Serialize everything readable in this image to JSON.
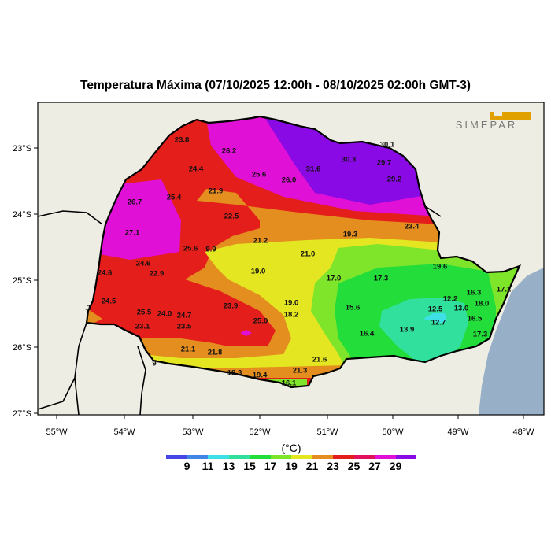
{
  "title": "Temperatura Máxima (07/10/2025 12:00h - 08/10/2025 02:00h GMT-3)",
  "logo_text": "SIMEPAR",
  "colors": {
    "land_outside": "#eeede4",
    "ocean": "#97b0c8",
    "logo": "#e0a000",
    "bins": [
      "#4646e6",
      "#3f86e6",
      "#3fdfe6",
      "#32e09e",
      "#22dd3a",
      "#7ee52a",
      "#e4e622",
      "#e48e20",
      "#e41e1a",
      "#e0125e",
      "#e010d6",
      "#8a0ae6"
    ]
  },
  "axes": {
    "lon_ticks": [
      "55°W",
      "54°W",
      "53°W",
      "52°W",
      "51°W",
      "50°W",
      "49°W",
      "48°W"
    ],
    "lat_ticks": [
      "23°S",
      "24°S",
      "25°S",
      "26°S",
      "27°S"
    ]
  },
  "legend": {
    "unit": "(°C)",
    "ticks": [
      "9",
      "11",
      "13",
      "15",
      "17",
      "19",
      "21",
      "23",
      "25",
      "27",
      "29"
    ]
  },
  "station_values": [
    "23.8",
    "26.2",
    "24.4",
    "25.6",
    "26.0",
    "31.6",
    "30.3",
    "29.7",
    "30.1",
    "29.2",
    "26.7",
    "25.4",
    "21.9",
    "22.5",
    "27.1",
    "23.4",
    "19.3",
    "21.2",
    "25.6",
    "9.9",
    "21.0",
    "24.6",
    "22.9",
    "24.6",
    "19.0",
    "19.6",
    "17.0",
    "17.3",
    "16.3",
    "17.1",
    "24.5",
    "19.0",
    "12.2",
    "12.5",
    "13.0",
    "18.0",
    "15.6",
    "16.5",
    "25.5",
    "24.0",
    "24.7",
    "23.9",
    "18.2",
    "12.7",
    "25.0",
    "23.5",
    "23.1",
    "16.4",
    "13.9",
    "17.3",
    "21.1",
    "21.8",
    "21.6",
    "18.3",
    "19.4",
    "21.3",
    "16.1",
    "9",
    ".1"
  ]
}
